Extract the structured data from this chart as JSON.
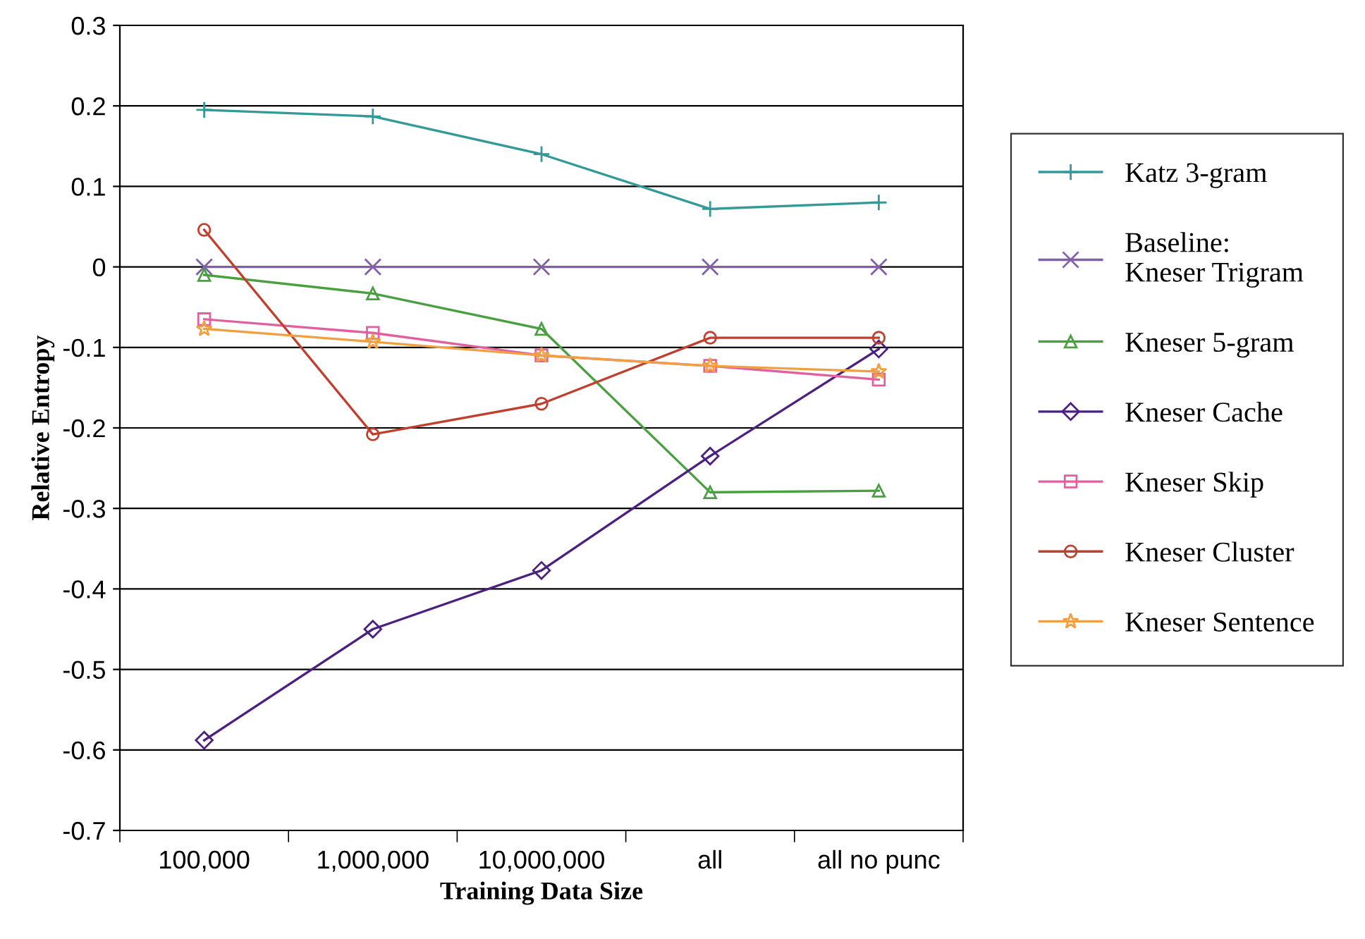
{
  "chart_data": {
    "type": "line",
    "xlabel": "Training Data Size",
    "ylabel": "Relative Entropy",
    "categories": [
      "100,000",
      "1,000,000",
      "10,000,000",
      "all",
      "all no punc"
    ],
    "ylim": [
      -0.7,
      0.3
    ],
    "yticks": [
      {
        "value": -0.7,
        "label": "-0.7"
      },
      {
        "value": -0.6,
        "label": "-0.6"
      },
      {
        "value": -0.5,
        "label": "-0.5"
      },
      {
        "value": -0.4,
        "label": "-0.4"
      },
      {
        "value": -0.3,
        "label": "-0.3"
      },
      {
        "value": -0.2,
        "label": "-0.2"
      },
      {
        "value": -0.1,
        "label": "-0.1"
      },
      0,
      0.1,
      0.2,
      0.3
    ],
    "grid": "y",
    "legend": "right",
    "line_style": "solid",
    "series": [
      {
        "name": "Katz 3-gram",
        "color": "#339999",
        "marker": "plus",
        "values": [
          0.195,
          0.187,
          0.14,
          0.072,
          0.08
        ]
      },
      {
        "name": "Baseline:\nKneser Trigram",
        "color": "#8060a8",
        "marker": "cross",
        "values": [
          0,
          0,
          0,
          0,
          0
        ]
      },
      {
        "name": "Kneser 5-gram",
        "color": "#4aa040",
        "marker": "triangle",
        "values": [
          -0.01,
          -0.033,
          -0.077,
          -0.28,
          -0.278
        ]
      },
      {
        "name": "Kneser Cache",
        "color": "#4b2080",
        "marker": "diamond",
        "values": [
          -0.588,
          -0.45,
          -0.377,
          -0.235,
          -0.102
        ]
      },
      {
        "name": "Kneser Skip",
        "color": "#e060a0",
        "marker": "square",
        "values": [
          -0.065,
          -0.082,
          -0.11,
          -0.123,
          -0.14
        ]
      },
      {
        "name": "Kneser Cluster",
        "color": "#c04030",
        "marker": "circle",
        "values": [
          0.046,
          -0.208,
          -0.17,
          -0.088,
          -0.088
        ]
      },
      {
        "name": "Kneser Sentence",
        "color": "#f0a040",
        "marker": "star",
        "values": [
          -0.077,
          -0.093,
          -0.11,
          -0.123,
          -0.13
        ]
      }
    ]
  }
}
